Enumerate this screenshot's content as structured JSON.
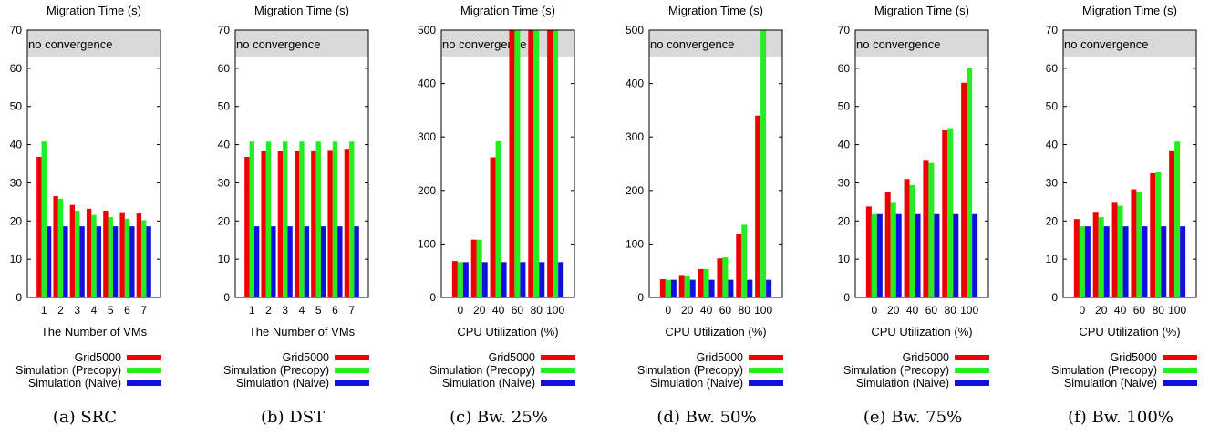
{
  "colors": {
    "grid5000": "#ee0000",
    "precopy": "#22ee22",
    "naive": "#1111dd",
    "band": "#d9d9d9"
  },
  "legend": {
    "grid5000": "Grid5000",
    "precopy": "Simulation (Precopy)",
    "naive": "Simulation (Naive)"
  },
  "chart_data": [
    {
      "type": "bar",
      "title": "Migration Time (s)",
      "xlabel": "The Number of VMs",
      "ylabel": "",
      "caption": "(a) SRC",
      "band_label": "no convergence",
      "band_from": 63,
      "ylim": [
        0,
        70
      ],
      "yticks": [
        0,
        10,
        20,
        30,
        40,
        50,
        60,
        70
      ],
      "categories": [
        "1",
        "2",
        "3",
        "4",
        "5",
        "6",
        "7"
      ],
      "series": [
        {
          "name": "Grid5000",
          "values": [
            36.8,
            26.5,
            24.2,
            23.2,
            22.7,
            22.3,
            22.0
          ]
        },
        {
          "name": "Simulation (Precopy)",
          "values": [
            40.8,
            25.8,
            22.7,
            21.6,
            21.0,
            20.6,
            20.2
          ]
        },
        {
          "name": "Simulation (Naive)",
          "values": [
            18.6,
            18.6,
            18.6,
            18.6,
            18.6,
            18.6,
            18.6
          ]
        }
      ]
    },
    {
      "type": "bar",
      "title": "Migration Time (s)",
      "xlabel": "The Number of VMs",
      "ylabel": "",
      "caption": "(b) DST",
      "band_label": "no convergence",
      "band_from": 63,
      "ylim": [
        0,
        70
      ],
      "yticks": [
        0,
        10,
        20,
        30,
        40,
        50,
        60,
        70
      ],
      "categories": [
        "1",
        "2",
        "3",
        "4",
        "5",
        "6",
        "7"
      ],
      "series": [
        {
          "name": "Grid5000",
          "values": [
            36.8,
            38.4,
            38.4,
            38.4,
            38.5,
            38.6,
            38.9
          ]
        },
        {
          "name": "Simulation (Precopy)",
          "values": [
            40.8,
            40.8,
            40.8,
            40.8,
            40.8,
            40.8,
            40.8
          ]
        },
        {
          "name": "Simulation (Naive)",
          "values": [
            18.6,
            18.6,
            18.6,
            18.6,
            18.6,
            18.6,
            18.6
          ]
        }
      ]
    },
    {
      "type": "bar",
      "title": "Migration Time (s)",
      "xlabel": "CPU Utilization (%)",
      "ylabel": "",
      "caption": "(c) Bw. 25%",
      "band_label": "no convergence",
      "band_from": 450,
      "ylim": [
        0,
        500
      ],
      "yticks": [
        0,
        100,
        200,
        300,
        400,
        500
      ],
      "categories": [
        "0",
        "20",
        "40",
        "60",
        "80",
        "100"
      ],
      "series": [
        {
          "name": "Grid5000",
          "values": [
            68,
            108,
            262,
            500,
            500,
            500
          ]
        },
        {
          "name": "Simulation (Precopy)",
          "values": [
            66,
            108,
            292,
            500,
            500,
            500
          ]
        },
        {
          "name": "Simulation (Naive)",
          "values": [
            66,
            66,
            66,
            66,
            66,
            66
          ]
        }
      ]
    },
    {
      "type": "bar",
      "title": "Migration Time (s)",
      "xlabel": "CPU Utilization (%)",
      "ylabel": "",
      "caption": "(d) Bw. 50%",
      "band_label": "no convergence",
      "band_from": 450,
      "ylim": [
        0,
        500
      ],
      "yticks": [
        0,
        100,
        200,
        300,
        400,
        500
      ],
      "categories": [
        "0",
        "20",
        "40",
        "60",
        "80",
        "100"
      ],
      "series": [
        {
          "name": "Grid5000",
          "values": [
            34,
            42,
            53,
            73,
            119,
            340
          ]
        },
        {
          "name": "Simulation (Precopy)",
          "values": [
            33,
            41,
            53,
            75,
            136,
            500
          ]
        },
        {
          "name": "Simulation (Naive)",
          "values": [
            33,
            33,
            33,
            33,
            33,
            33
          ]
        }
      ]
    },
    {
      "type": "bar",
      "title": "Migration Time (s)",
      "xlabel": "CPU Utilization (%)",
      "ylabel": "",
      "caption": "(e) Bw. 75%",
      "band_label": "no convergence",
      "band_from": 63,
      "ylim": [
        0,
        70
      ],
      "yticks": [
        0,
        10,
        20,
        30,
        40,
        50,
        60,
        70
      ],
      "categories": [
        "0",
        "20",
        "40",
        "60",
        "80",
        "100"
      ],
      "series": [
        {
          "name": "Grid5000",
          "values": [
            23.8,
            27.5,
            31.0,
            36.0,
            43.8,
            56.2
          ]
        },
        {
          "name": "Simulation (Precopy)",
          "values": [
            21.8,
            25.0,
            29.4,
            35.2,
            44.3,
            60.1
          ]
        },
        {
          "name": "Simulation (Naive)",
          "values": [
            21.8,
            21.8,
            21.8,
            21.8,
            21.8,
            21.8
          ]
        }
      ]
    },
    {
      "type": "bar",
      "title": "Migration Time (s)",
      "xlabel": "CPU Utilization (%)",
      "ylabel": "",
      "caption": "(f) Bw. 100%",
      "band_label": "no convergence",
      "band_from": 63,
      "ylim": [
        0,
        70
      ],
      "yticks": [
        0,
        10,
        20,
        30,
        40,
        50,
        60,
        70
      ],
      "categories": [
        "0",
        "20",
        "40",
        "60",
        "80",
        "100"
      ],
      "series": [
        {
          "name": "Grid5000",
          "values": [
            20.5,
            22.4,
            25.0,
            28.3,
            32.5,
            38.5
          ]
        },
        {
          "name": "Simulation (Precopy)",
          "values": [
            18.6,
            21.0,
            24.0,
            27.7,
            32.9,
            40.8
          ]
        },
        {
          "name": "Simulation (Naive)",
          "values": [
            18.6,
            18.6,
            18.6,
            18.6,
            18.6,
            18.6
          ]
        }
      ]
    }
  ]
}
